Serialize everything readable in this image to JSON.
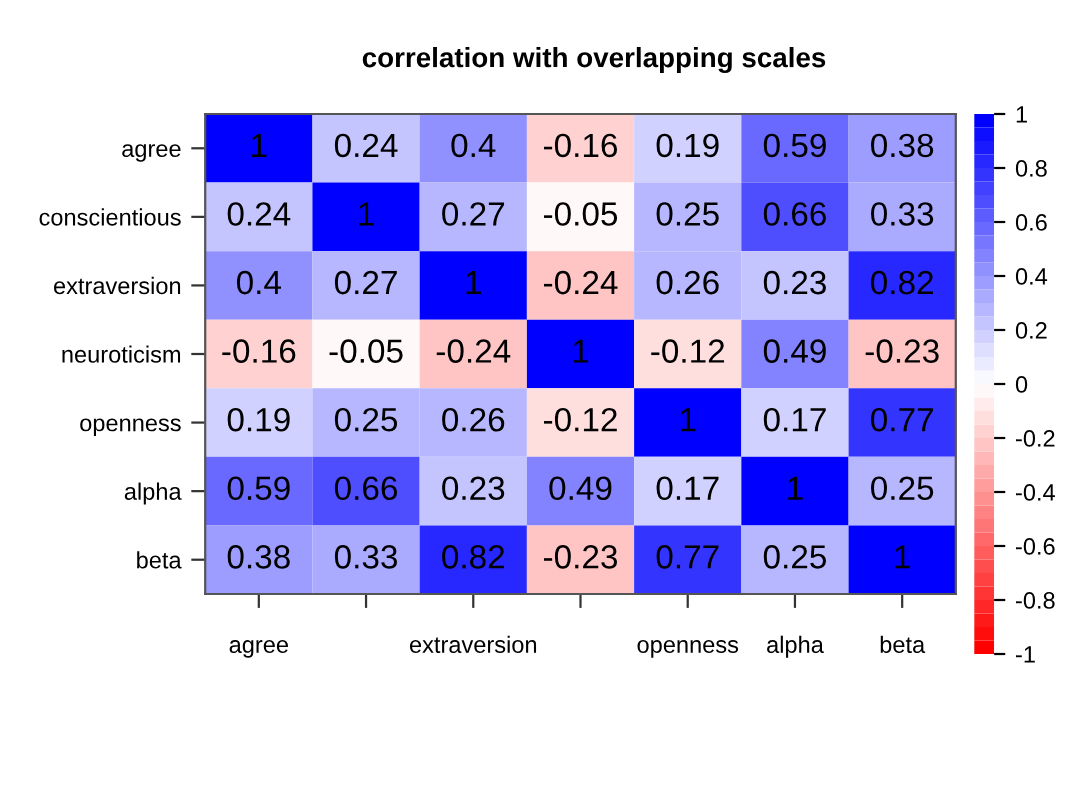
{
  "chart_data": {
    "type": "heatmap",
    "title": "correlation with overlapping scales",
    "categories": [
      "agree",
      null,
      "extraversion",
      null,
      "openness",
      "alpha",
      "beta"
    ],
    "y_categories": [
      "agree",
      "conscientious",
      "extraversion",
      "neuroticism",
      "openness",
      "alpha",
      "beta"
    ],
    "cells": [
      [
        1,
        0.24,
        0.4,
        -0.16,
        0.19,
        0.59,
        0.38
      ],
      [
        0.24,
        1,
        0.27,
        -0.05,
        0.25,
        0.66,
        0.33
      ],
      [
        0.4,
        0.27,
        1,
        -0.24,
        0.26,
        0.23,
        0.82
      ],
      [
        -0.16,
        -0.05,
        -0.24,
        1,
        -0.12,
        0.49,
        -0.23
      ],
      [
        0.19,
        0.25,
        0.26,
        -0.12,
        1,
        0.17,
        0.77
      ],
      [
        0.59,
        0.66,
        0.23,
        0.49,
        0.17,
        1,
        0.25
      ],
      [
        0.38,
        0.33,
        0.82,
        -0.23,
        0.77,
        0.25,
        1
      ]
    ],
    "clim": [
      -1,
      1
    ],
    "cticks": [
      -1,
      -0.8,
      -0.6,
      -0.4,
      -0.2,
      0,
      0.2,
      0.4,
      0.6,
      0.8,
      1
    ],
    "data_labels": true
  }
}
